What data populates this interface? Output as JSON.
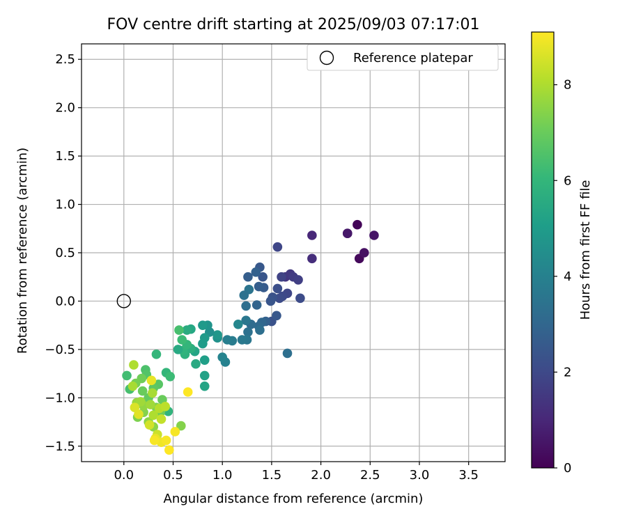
{
  "chart_data": {
    "type": "scatter",
    "title": "FOV centre drift starting at 2025/09/03 07:17:01",
    "xlabel": "Angular distance from reference (arcmin)",
    "ylabel": "Rotation from reference (arcmin)",
    "xlim": [
      -0.43,
      3.87
    ],
    "ylim": [
      -1.66,
      2.66
    ],
    "xticks": [
      0.0,
      0.5,
      1.0,
      1.5,
      2.0,
      2.5,
      3.0,
      3.5
    ],
    "xtick_labels": [
      "0.0",
      "0.5",
      "1.0",
      "1.5",
      "2.0",
      "2.5",
      "3.0",
      "3.5"
    ],
    "yticks": [
      -1.5,
      -1.0,
      -0.5,
      0.0,
      0.5,
      1.0,
      1.5,
      2.0,
      2.5
    ],
    "ytick_labels": [
      "−1.5",
      "−1.0",
      "−0.5",
      "0.0",
      "0.5",
      "1.0",
      "1.5",
      "2.0",
      "2.5"
    ],
    "grid": true,
    "legend": {
      "position": "top-right",
      "entries": [
        "Reference platepar"
      ]
    },
    "reference_point": {
      "name": "Reference platepar",
      "x": 0.0,
      "y": 0.0
    },
    "colorbar": {
      "label": "Hours from first FF file",
      "range": [
        0,
        9.1
      ],
      "ticks": [
        0,
        2,
        4,
        6,
        8
      ],
      "tick_labels": [
        "0",
        "2",
        "4",
        "6",
        "8"
      ],
      "colormap": "viridis"
    },
    "series": [
      {
        "points": [
          [
            2.27,
            0.7,
            0.3
          ],
          [
            2.37,
            0.79,
            0.1
          ],
          [
            2.39,
            0.44,
            0.2
          ],
          [
            2.44,
            0.5,
            0.4
          ],
          [
            2.54,
            0.68,
            0.5
          ],
          [
            2.27,
            0.7,
            0.6
          ],
          [
            1.91,
            0.68,
            1.0
          ],
          [
            1.91,
            0.44,
            1.2
          ],
          [
            1.56,
            0.56,
            1.9
          ],
          [
            1.64,
            0.25,
            1.4
          ],
          [
            1.69,
            0.28,
            1.5
          ],
          [
            1.72,
            0.25,
            1.6
          ],
          [
            1.77,
            0.22,
            1.7
          ],
          [
            1.79,
            0.03,
            2.1
          ],
          [
            1.6,
            0.25,
            1.8
          ],
          [
            1.66,
            0.08,
            1.9
          ],
          [
            1.61,
            0.05,
            2.0
          ],
          [
            1.56,
            0.13,
            2.2
          ],
          [
            1.58,
            0.03,
            2.1
          ],
          [
            1.51,
            0.04,
            2.3
          ],
          [
            1.49,
            0.0,
            2.4
          ],
          [
            1.5,
            -0.21,
            2.3
          ],
          [
            1.55,
            -0.15,
            2.5
          ],
          [
            1.41,
            0.25,
            2.4
          ],
          [
            1.42,
            0.14,
            2.6
          ],
          [
            1.38,
            0.35,
            2.5
          ],
          [
            1.37,
            0.15,
            2.7
          ],
          [
            1.34,
            0.3,
            2.8
          ],
          [
            1.35,
            -0.04,
            2.9
          ],
          [
            1.26,
            0.25,
            2.7
          ],
          [
            1.44,
            -0.21,
            2.8
          ],
          [
            1.4,
            -0.22,
            3.0
          ],
          [
            1.37,
            -0.26,
            3.1
          ],
          [
            1.29,
            -0.24,
            3.2
          ],
          [
            1.26,
            -0.32,
            3.4
          ],
          [
            1.38,
            -0.3,
            3.3
          ],
          [
            1.24,
            -0.05,
            3.3
          ],
          [
            1.27,
            0.12,
            3.5
          ],
          [
            1.22,
            0.06,
            3.4
          ],
          [
            1.24,
            -0.2,
            3.6
          ],
          [
            1.25,
            -0.4,
            3.6
          ],
          [
            1.2,
            -0.4,
            3.7
          ],
          [
            1.1,
            -0.41,
            3.8
          ],
          [
            1.05,
            -0.4,
            3.9
          ],
          [
            1.03,
            -0.63,
            4.0
          ],
          [
            1.0,
            -0.58,
            4.1
          ],
          [
            1.16,
            -0.24,
            4.2
          ],
          [
            1.66,
            -0.54,
            3.3
          ],
          [
            0.95,
            -0.38,
            4.6
          ],
          [
            0.95,
            -0.35,
            4.8
          ],
          [
            0.87,
            -0.32,
            4.5
          ],
          [
            0.85,
            -0.25,
            4.7
          ],
          [
            0.8,
            -0.25,
            4.9
          ],
          [
            0.82,
            -0.38,
            4.9
          ],
          [
            0.8,
            -0.44,
            5.0
          ],
          [
            0.82,
            -0.61,
            5.1
          ],
          [
            0.82,
            -0.77,
            5.2
          ],
          [
            0.82,
            -0.88,
            5.3
          ],
          [
            0.72,
            -0.52,
            5.3
          ],
          [
            0.73,
            -0.65,
            5.5
          ],
          [
            0.68,
            -0.29,
            5.4
          ],
          [
            0.64,
            -0.3,
            5.6
          ],
          [
            0.68,
            -0.49,
            5.7
          ],
          [
            0.62,
            -0.55,
            5.8
          ],
          [
            0.6,
            -0.51,
            5.9
          ],
          [
            0.55,
            -0.5,
            5.5
          ],
          [
            0.64,
            -0.45,
            6.0
          ],
          [
            0.59,
            -0.4,
            6.2
          ],
          [
            0.56,
            -0.3,
            6.4
          ],
          [
            0.33,
            -0.55,
            6.0
          ],
          [
            0.43,
            -0.74,
            6.0
          ],
          [
            0.47,
            -0.78,
            6.2
          ],
          [
            0.45,
            -1.14,
            5.9
          ],
          [
            0.03,
            -0.77,
            6.3
          ],
          [
            0.06,
            -0.91,
            6.4
          ],
          [
            0.22,
            -0.71,
            6.5
          ],
          [
            0.23,
            -0.76,
            6.6
          ],
          [
            0.35,
            -0.86,
            6.7
          ],
          [
            0.3,
            -0.9,
            6.8
          ],
          [
            0.25,
            -1.0,
            6.9
          ],
          [
            0.19,
            -0.93,
            7.0
          ],
          [
            0.18,
            -0.8,
            7.1
          ],
          [
            0.12,
            -0.85,
            7.2
          ],
          [
            0.14,
            -1.2,
            7.3
          ],
          [
            0.2,
            -1.15,
            7.4
          ],
          [
            0.39,
            -1.02,
            7.0
          ],
          [
            0.37,
            -1.15,
            7.1
          ],
          [
            0.33,
            -1.1,
            7.3
          ],
          [
            0.25,
            -1.25,
            7.5
          ],
          [
            0.2,
            -1.08,
            7.6
          ],
          [
            0.3,
            -1.3,
            7.5
          ],
          [
            0.58,
            -1.29,
            7.4
          ],
          [
            0.13,
            -1.05,
            7.7
          ],
          [
            0.1,
            -0.66,
            8.0
          ],
          [
            0.09,
            -0.88,
            7.9
          ],
          [
            0.17,
            -1.04,
            7.8
          ],
          [
            0.27,
            -1.07,
            7.8
          ],
          [
            0.29,
            -0.95,
            7.9
          ],
          [
            0.3,
            -1.18,
            8.0
          ],
          [
            0.36,
            -1.11,
            8.1
          ],
          [
            0.42,
            -1.09,
            8.2
          ],
          [
            0.38,
            -1.22,
            8.3
          ],
          [
            0.34,
            -1.38,
            8.4
          ],
          [
            0.26,
            -1.28,
            8.5
          ],
          [
            0.11,
            -1.1,
            8.6
          ],
          [
            0.15,
            -1.17,
            8.7
          ],
          [
            0.28,
            -0.82,
            8.8
          ],
          [
            0.32,
            -1.42,
            8.8
          ],
          [
            0.38,
            -1.46,
            8.9
          ],
          [
            0.43,
            -1.44,
            9.0
          ],
          [
            0.31,
            -1.44,
            9.0
          ],
          [
            0.46,
            -1.54,
            9.1
          ],
          [
            0.52,
            -1.35,
            9.0
          ],
          [
            0.65,
            -0.94,
            9.1
          ]
        ]
      }
    ]
  }
}
